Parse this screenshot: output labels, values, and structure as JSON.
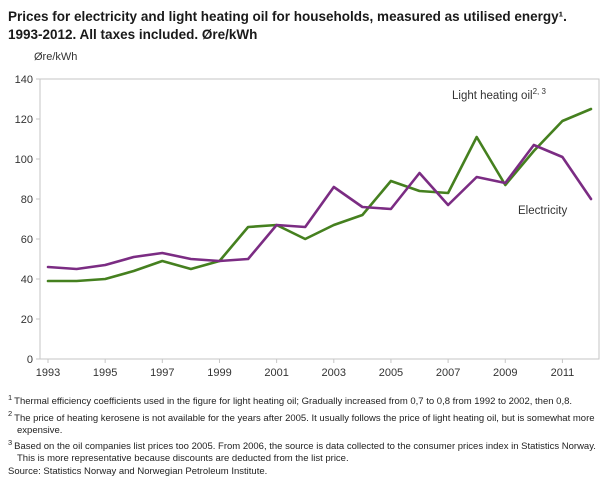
{
  "header": {
    "title": "Prices for electricity and light heating oil for households, measured as utilised energy¹. 1993-2012. All taxes included. Øre/kWh"
  },
  "chart_data": {
    "type": "line",
    "title": "Prices for electricity and light heating oil for households, measured as utilised energy. 1993-2012. All taxes included. Øre/kWh",
    "xlabel": "",
    "ylabel": "Øre/kWh",
    "ylim": [
      0,
      140
    ],
    "ytick_step": 20,
    "grid": false,
    "legend_position": "inline-annotations",
    "x": [
      1993,
      1994,
      1995,
      1996,
      1997,
      1998,
      1999,
      2000,
      2001,
      2002,
      2003,
      2004,
      2005,
      2006,
      2007,
      2008,
      2009,
      2010,
      2011,
      2012
    ],
    "x_tick_labels": [
      "1993",
      "1995",
      "1997",
      "1999",
      "2001",
      "2003",
      "2005",
      "2007",
      "2009",
      "2011"
    ],
    "series": [
      {
        "name": "Light heating oil",
        "color": "#45801f",
        "values": [
          39,
          39,
          40,
          44,
          49,
          45,
          49,
          66,
          67,
          60,
          67,
          72,
          89,
          84,
          83,
          111,
          87,
          104,
          119,
          125
        ]
      },
      {
        "name": "Electricity",
        "color": "#7b2c83",
        "values": [
          46,
          45,
          47,
          51,
          53,
          50,
          49,
          50,
          67,
          66,
          86,
          76,
          75,
          93,
          77,
          91,
          88,
          107,
          101,
          80
        ]
      }
    ],
    "annotations": [
      {
        "text": "Light heating oil",
        "sup": "2, 3",
        "target_series": "Light heating oil"
      },
      {
        "text": "Electricity",
        "sup": "",
        "target_series": "Electricity"
      }
    ],
    "axis_color": "#c6c6c6",
    "tick_label_color": "#333333"
  },
  "footnotes": [
    {
      "marker": "1",
      "text": "Thermal efficiency coefficients used in the figure for light heating oil; Gradually increased from 0,7 to 0,8 from 1992 to 2002, then 0,8."
    },
    {
      "marker": "2",
      "text": "The price of heating kerosene is not available for the years after 2005. It usually follows the price of light heating oil, but is somewhat more expensive."
    },
    {
      "marker": "3",
      "text": "Based on the oil companies list prices too 2005. From 2006, the source is data collected to the consumer prices index in Statistics Norway. This is more representative because discounts are deducted from the list price."
    }
  ],
  "source": "Source: Statistics Norway and Norwegian Petroleum Institute."
}
